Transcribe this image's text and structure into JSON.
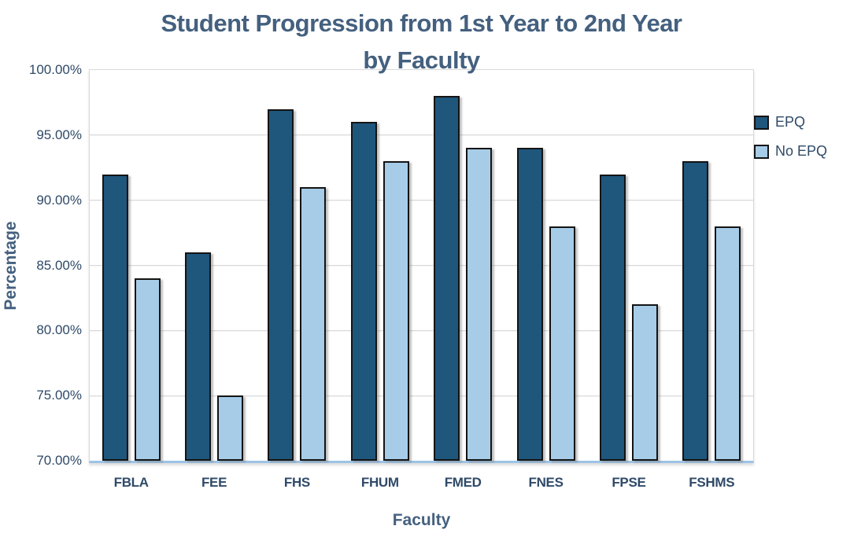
{
  "chart_data": {
    "type": "bar",
    "title": "Student Progression from 1st Year to 2nd Year by Faculty",
    "title_lines": [
      "Student Progression from 1st Year to 2nd Year",
      "by Faculty"
    ],
    "xlabel": "Faculty",
    "ylabel": "Percentage",
    "categories": [
      "FBLA",
      "FEE",
      "FHS",
      "FHUM",
      "FMED",
      "FNES",
      "FPSE",
      "FSHMS"
    ],
    "series": [
      {
        "name": "EPQ",
        "color": "#1F567C",
        "values": [
          92,
          86,
          97,
          96,
          98,
          94,
          92,
          93
        ]
      },
      {
        "name": "No EPQ",
        "color": "#A6CCE8",
        "values": [
          84,
          75,
          91,
          93,
          94,
          88,
          82,
          88
        ]
      }
    ],
    "ylim": [
      70,
      100
    ],
    "ytick_step": 5,
    "ytick_labels": [
      "100.00%",
      "95.00%",
      "90.00%",
      "85.00%",
      "80.00%",
      "75.00%",
      "70.00%"
    ],
    "grid": true,
    "legend_position": "right",
    "colors": {
      "title_text": "#44607F",
      "tick_text": "#2F4A68",
      "legend_text": "#2F4A68",
      "gridline": "#D9D9D9",
      "axis_line": "#9DC3E6",
      "bar_border": "#141414"
    }
  }
}
